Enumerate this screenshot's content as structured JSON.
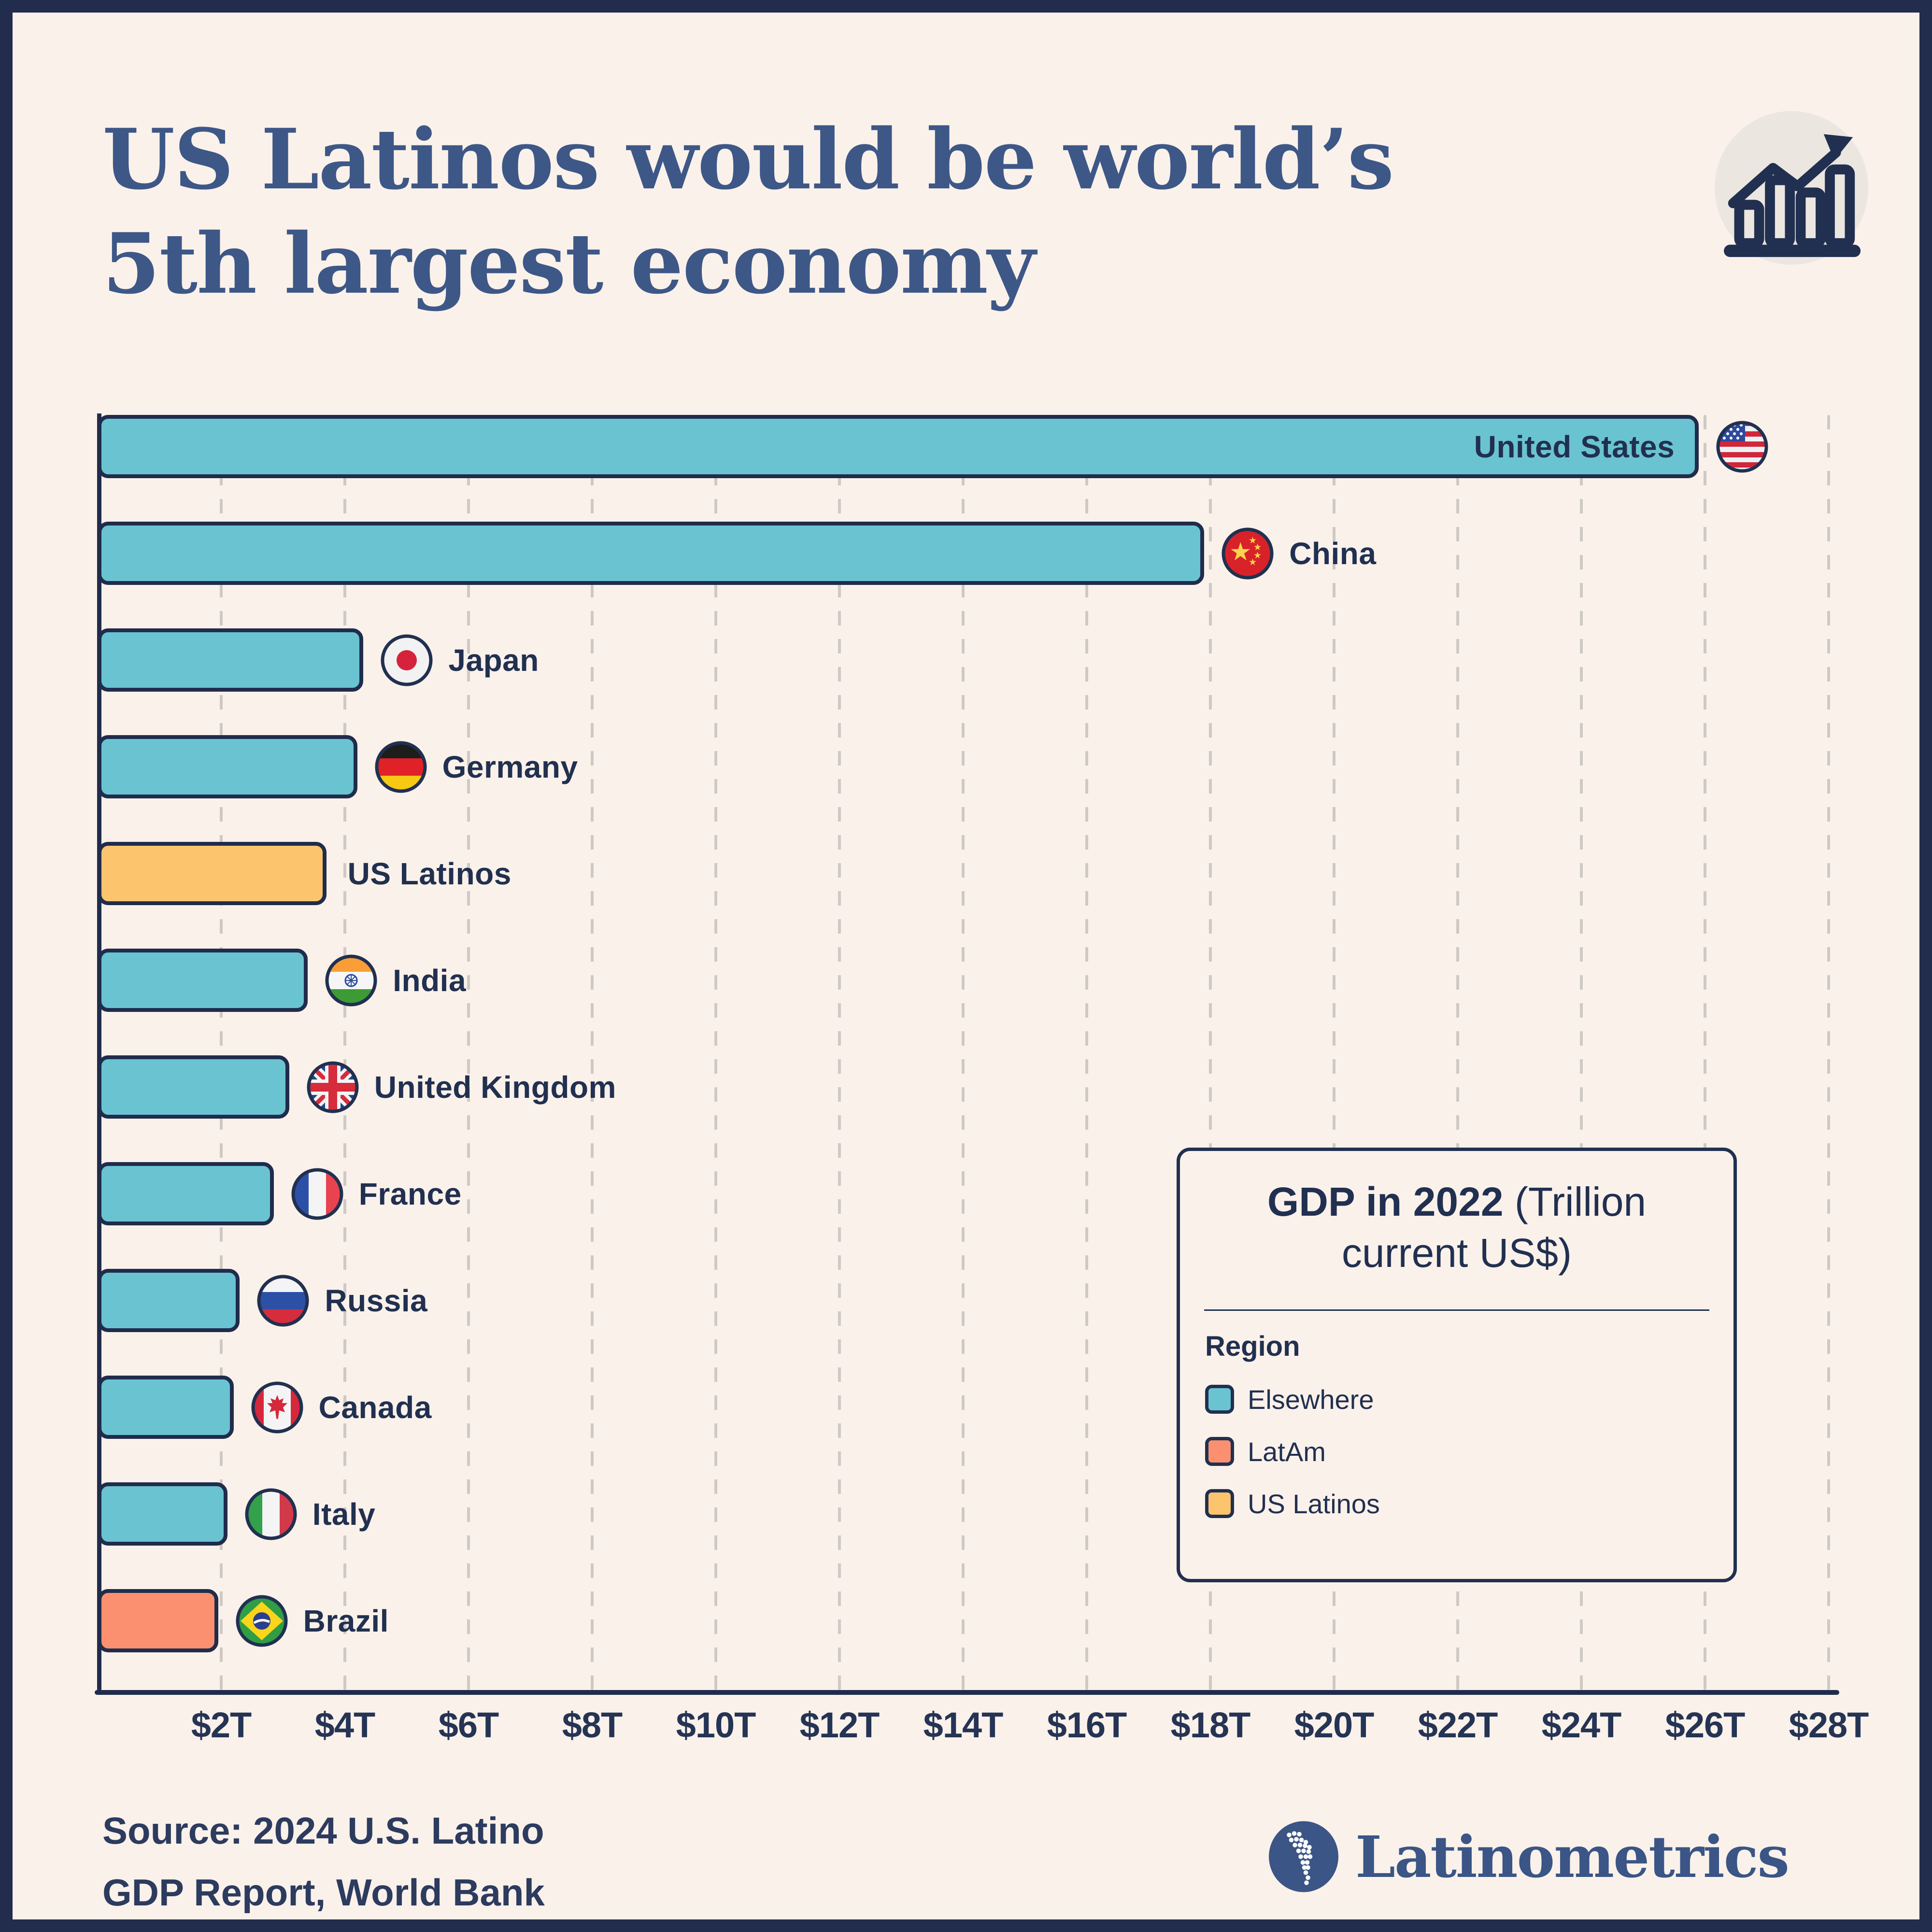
{
  "title": {
    "line1": "US Latinos would be world’s",
    "line2": "5th largest economy"
  },
  "header_icon": "bar-chart-trend-icon",
  "chart_data": {
    "type": "bar",
    "orientation": "horizontal",
    "title": "GDP in 2022",
    "unit_label": "(Trillion current US$)",
    "x_axis": {
      "max": 28,
      "tick_values": [
        2,
        4,
        6,
        8,
        10,
        12,
        14,
        16,
        18,
        20,
        22,
        24,
        26,
        28
      ],
      "tick_labels": [
        "$2T",
        "$4T",
        "$6T",
        "$8T",
        "$10T",
        "$12T",
        "$14T",
        "$16T",
        "$18T",
        "$20T",
        "$22T",
        "$24T",
        "$26T",
        "$28T"
      ]
    },
    "categories": [
      "United States",
      "China",
      "Japan",
      "Germany",
      "US Latinos",
      "India",
      "United Kingdom",
      "France",
      "Russia",
      "Canada",
      "Italy",
      "Brazil"
    ],
    "values": [
      25.9,
      17.9,
      4.3,
      4.2,
      3.7,
      3.4,
      3.1,
      2.85,
      2.3,
      2.2,
      2.1,
      1.95
    ],
    "regions": [
      "Elsewhere",
      "Elsewhere",
      "Elsewhere",
      "Elsewhere",
      "US Latinos",
      "Elsewhere",
      "Elsewhere",
      "Elsewhere",
      "Elsewhere",
      "Elsewhere",
      "Elsewhere",
      "LatAm"
    ],
    "region_colors": {
      "Elsewhere": "#6ac3d1",
      "LatAm": "#fa9070",
      "US Latinos": "#fcc46c"
    },
    "flags": [
      "united-states",
      "china",
      "japan",
      "germany",
      null,
      "india",
      "united-kingdom",
      "france",
      "russia",
      "canada",
      "italy",
      "brazil"
    ],
    "label_inside_bar": [
      true,
      false,
      false,
      false,
      false,
      false,
      false,
      false,
      false,
      false,
      false,
      false
    ],
    "gridlines": "dashed vertical every $2T",
    "legend_position": "right-middle"
  },
  "legend": {
    "title_bold": "GDP in 2022",
    "title_rest": " (Trillion current US$)",
    "region_label": "Region",
    "items": [
      {
        "label": "Elsewhere",
        "color": "#6ac3d1"
      },
      {
        "label": "LatAm",
        "color": "#fa9070"
      },
      {
        "label": "US Latinos",
        "color": "#fcc46c"
      }
    ]
  },
  "source": {
    "line1": "Source: 2024 U.S. Latino",
    "line2": "GDP Report, World Bank"
  },
  "logo": {
    "text": "Latinometrics"
  },
  "colors": {
    "background": "#faf1ea",
    "frame": "#222d4d",
    "title_blue": "#3d5787",
    "text_navy": "#213050",
    "bar_border": "#202c4c",
    "gridline": "#cfc9c5"
  }
}
